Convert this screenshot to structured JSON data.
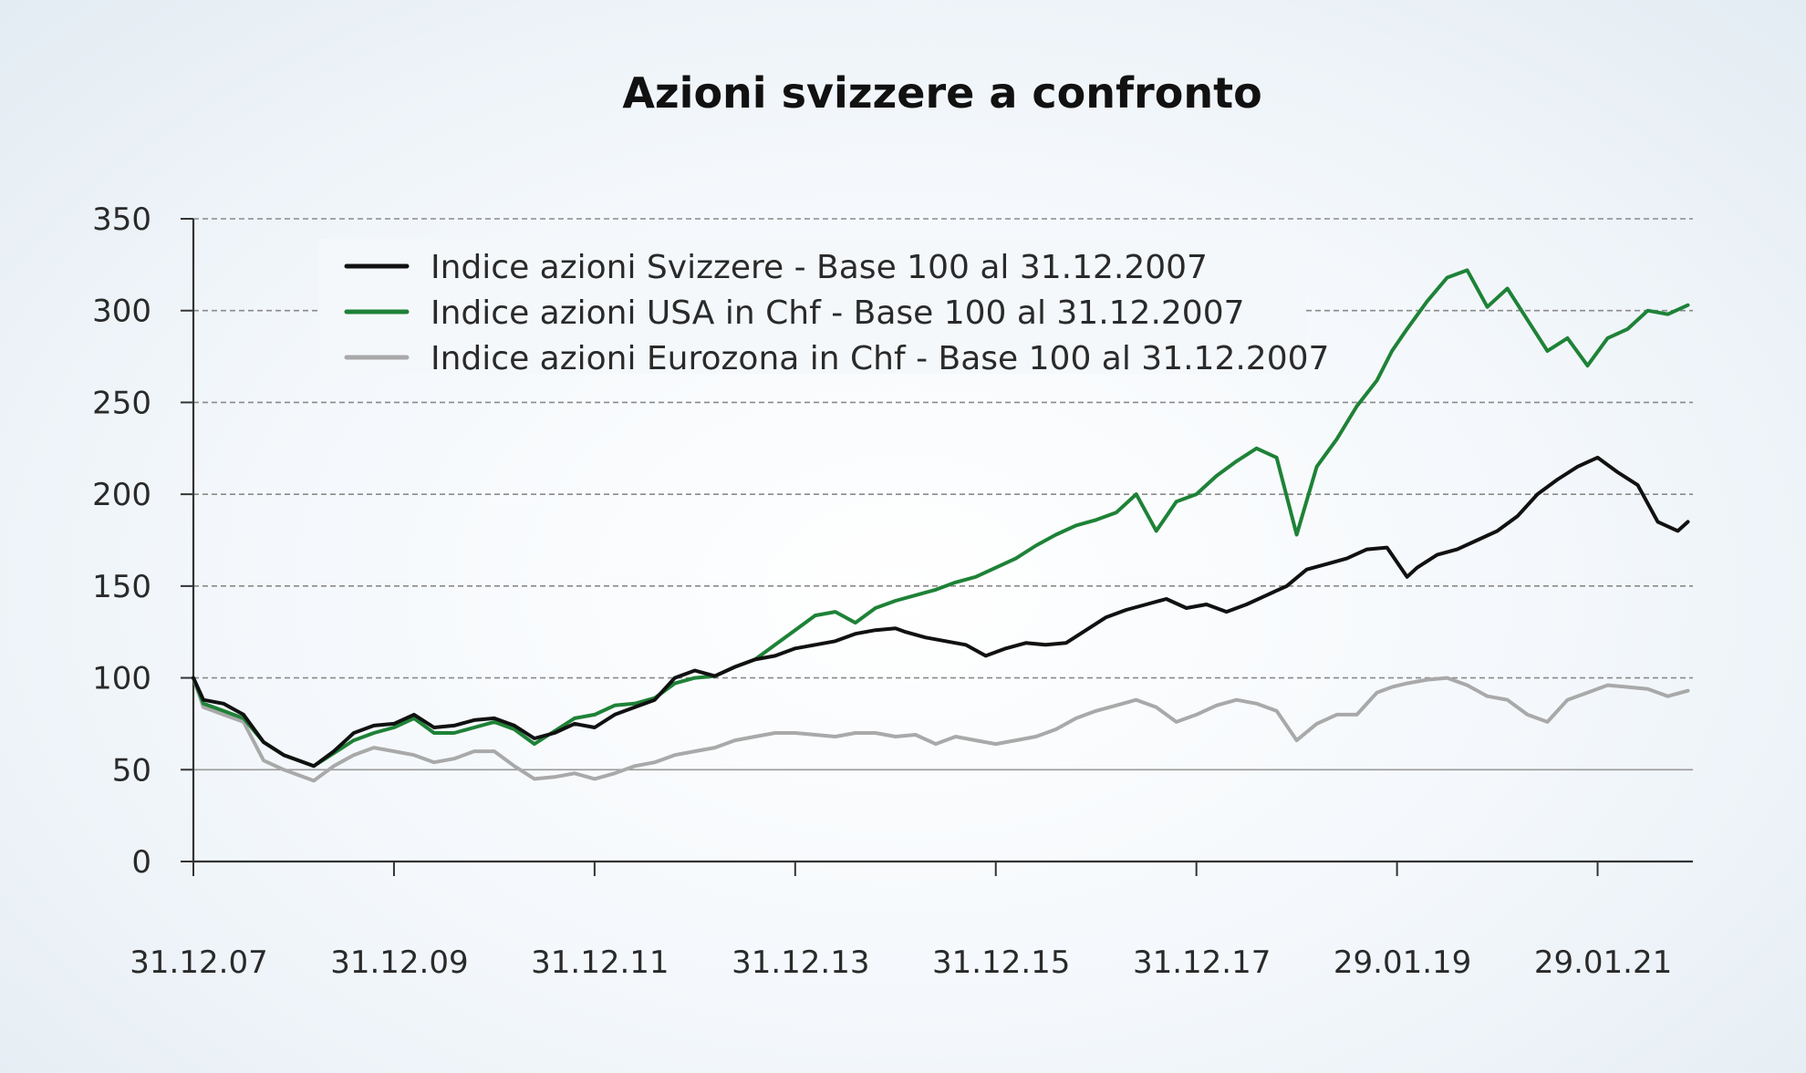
{
  "chart_data": {
    "type": "line",
    "title": "Azioni svizzere a confronto",
    "xlabel": "",
    "ylabel": "",
    "ylim": [
      0,
      350
    ],
    "yticks": [
      0,
      50,
      100,
      150,
      200,
      250,
      300,
      350
    ],
    "x_tick_labels": [
      "31.12.07",
      "31.12.09",
      "31.12.11",
      "31.12.13",
      "31.12.15",
      "31.12.17",
      "29.01.19",
      "29.01.21"
    ],
    "x_tick_positions": [
      2008.0,
      2010.0,
      2012.0,
      2014.0,
      2016.0,
      2018.0,
      2020.0,
      2022.0
    ],
    "xlim": [
      2008.0,
      2022.95
    ],
    "grid": "horizontal-dashed",
    "legend_position": "top-left",
    "series": [
      {
        "name": "Indice azioni Svizzere - Base 100 al 31.12.2007",
        "color": "#111111",
        "x": [
          2008.0,
          2008.1,
          2008.3,
          2008.5,
          2008.7,
          2008.9,
          2009.2,
          2009.4,
          2009.6,
          2009.8,
          2010.0,
          2010.2,
          2010.4,
          2010.6,
          2010.8,
          2011.0,
          2011.2,
          2011.4,
          2011.6,
          2011.8,
          2012.0,
          2012.2,
          2012.4,
          2012.6,
          2012.8,
          2013.0,
          2013.2,
          2013.4,
          2013.6,
          2013.8,
          2014.0,
          2014.2,
          2014.4,
          2014.6,
          2014.8,
          2015.0,
          2015.1,
          2015.3,
          2015.5,
          2015.7,
          2015.9,
          2016.1,
          2016.3,
          2016.5,
          2016.7,
          2016.9,
          2017.1,
          2017.3,
          2017.5,
          2017.7,
          2017.9,
          2018.1,
          2018.3,
          2018.5,
          2018.7,
          2018.9,
          2019.1,
          2019.3,
          2019.5,
          2019.7,
          2019.9,
          2020.1,
          2020.2,
          2020.4,
          2020.6,
          2020.8,
          2021.0,
          2021.2,
          2021.4,
          2021.6,
          2021.8,
          2022.0,
          2022.2,
          2022.4,
          2022.6,
          2022.8,
          2022.9
        ],
        "values": [
          100,
          88,
          86,
          80,
          65,
          58,
          52,
          60,
          70,
          74,
          75,
          80,
          73,
          74,
          77,
          78,
          74,
          67,
          70,
          75,
          73,
          80,
          84,
          88,
          100,
          104,
          101,
          106,
          110,
          112,
          116,
          118,
          120,
          124,
          126,
          127,
          125,
          122,
          120,
          118,
          112,
          116,
          119,
          118,
          119,
          126,
          133,
          137,
          140,
          143,
          138,
          140,
          136,
          140,
          145,
          150,
          159,
          162,
          165,
          170,
          171,
          155,
          160,
          167,
          170,
          175,
          180,
          188,
          200,
          208,
          215,
          220,
          212,
          205,
          185,
          180,
          185
        ]
      },
      {
        "name": "Indice azioni USA in Chf - Base 100 al 31.12.2007",
        "color": "#1e8237",
        "x": [
          2008.0,
          2008.1,
          2008.3,
          2008.5,
          2008.7,
          2008.9,
          2009.2,
          2009.4,
          2009.6,
          2009.8,
          2010.0,
          2010.2,
          2010.4,
          2010.6,
          2010.8,
          2011.0,
          2011.2,
          2011.4,
          2011.6,
          2011.8,
          2012.0,
          2012.2,
          2012.4,
          2012.6,
          2012.8,
          2013.0,
          2013.2,
          2013.4,
          2013.6,
          2013.8,
          2014.0,
          2014.2,
          2014.4,
          2014.6,
          2014.8,
          2015.0,
          2015.2,
          2015.4,
          2015.6,
          2015.8,
          2016.0,
          2016.2,
          2016.4,
          2016.6,
          2016.8,
          2017.0,
          2017.2,
          2017.4,
          2017.6,
          2017.8,
          2018.0,
          2018.2,
          2018.4,
          2018.6,
          2018.8,
          2019.0,
          2019.2,
          2019.4,
          2019.6,
          2019.8,
          2019.95,
          2020.1,
          2020.3,
          2020.5,
          2020.7,
          2020.9,
          2021.1,
          2021.3,
          2021.5,
          2021.7,
          2021.9,
          2022.1,
          2022.3,
          2022.5,
          2022.7,
          2022.9
        ],
        "values": [
          100,
          86,
          82,
          78,
          65,
          58,
          52,
          59,
          66,
          70,
          73,
          78,
          70,
          70,
          73,
          76,
          72,
          64,
          71,
          78,
          80,
          85,
          86,
          89,
          97,
          100,
          101,
          106,
          110,
          118,
          126,
          134,
          136,
          130,
          138,
          142,
          145,
          148,
          152,
          155,
          160,
          165,
          172,
          178,
          183,
          186,
          190,
          200,
          180,
          196,
          200,
          210,
          218,
          225,
          220,
          178,
          215,
          230,
          248,
          262,
          278,
          290,
          305,
          318,
          322,
          302,
          312,
          295,
          278,
          285,
          270,
          285,
          290,
          300,
          298,
          303
        ]
      },
      {
        "name": "Indice azioni Eurozona in Chf - Base 100 al 31.12.2007",
        "color": "#a9a9a9",
        "x": [
          2008.0,
          2008.1,
          2008.3,
          2008.5,
          2008.7,
          2008.9,
          2009.2,
          2009.4,
          2009.6,
          2009.8,
          2010.0,
          2010.2,
          2010.4,
          2010.6,
          2010.8,
          2011.0,
          2011.2,
          2011.4,
          2011.6,
          2011.8,
          2012.0,
          2012.2,
          2012.4,
          2012.6,
          2012.8,
          2013.0,
          2013.2,
          2013.4,
          2013.6,
          2013.8,
          2014.0,
          2014.2,
          2014.4,
          2014.6,
          2014.8,
          2015.0,
          2015.2,
          2015.4,
          2015.6,
          2015.8,
          2016.0,
          2016.2,
          2016.4,
          2016.6,
          2016.8,
          2017.0,
          2017.2,
          2017.4,
          2017.6,
          2017.8,
          2018.0,
          2018.2,
          2018.4,
          2018.6,
          2018.8,
          2019.0,
          2019.2,
          2019.4,
          2019.6,
          2019.8,
          2019.95,
          2020.1,
          2020.3,
          2020.5,
          2020.7,
          2020.9,
          2021.1,
          2021.3,
          2021.5,
          2021.7,
          2021.9,
          2022.1,
          2022.3,
          2022.5,
          2022.7,
          2022.9
        ],
        "values": [
          100,
          84,
          80,
          76,
          55,
          50,
          44,
          52,
          58,
          62,
          60,
          58,
          54,
          56,
          60,
          60,
          52,
          45,
          46,
          48,
          45,
          48,
          52,
          54,
          58,
          60,
          62,
          66,
          68,
          70,
          70,
          69,
          68,
          70,
          70,
          68,
          69,
          64,
          68,
          66,
          64,
          66,
          68,
          72,
          78,
          82,
          85,
          88,
          84,
          76,
          80,
          85,
          88,
          86,
          82,
          66,
          75,
          80,
          80,
          92,
          95,
          97,
          99,
          100,
          96,
          90,
          88,
          80,
          76,
          88,
          92,
          96,
          95,
          94,
          90,
          93
        ]
      }
    ]
  }
}
